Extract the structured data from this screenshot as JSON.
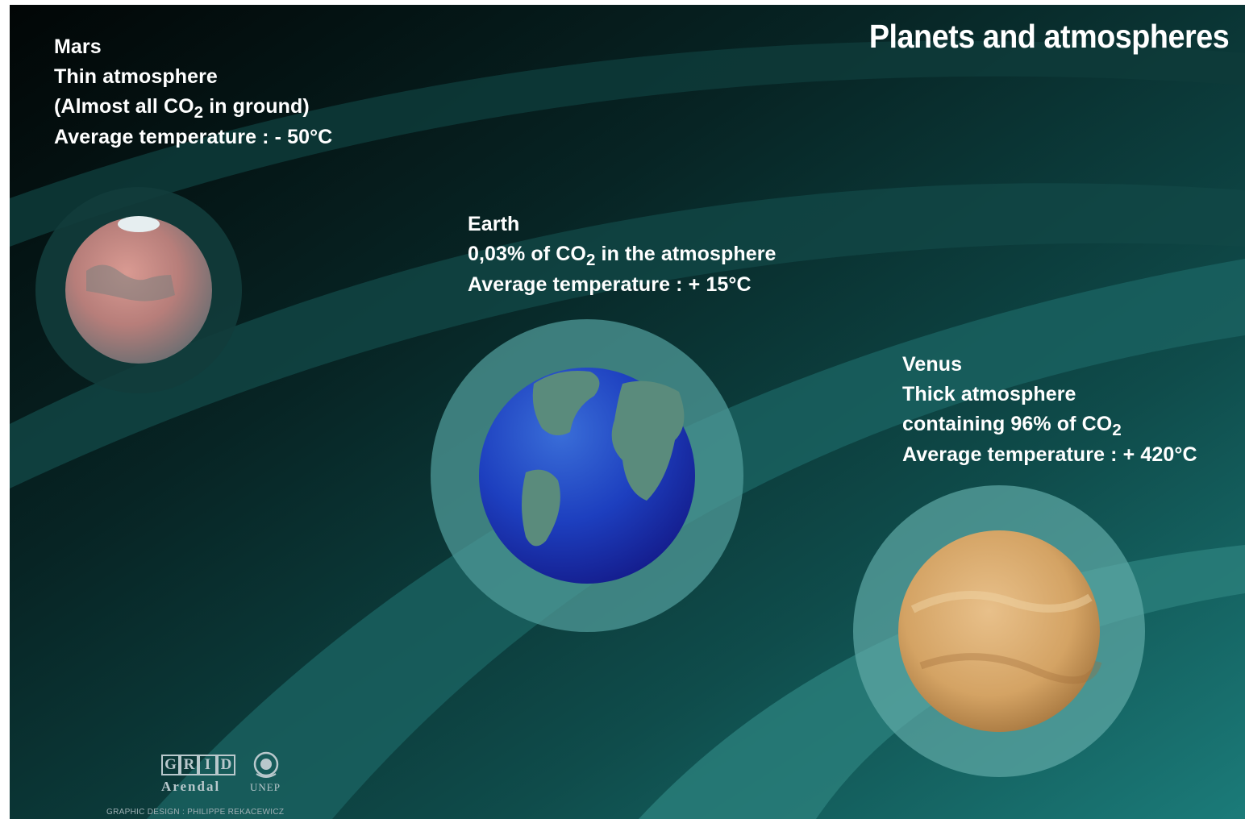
{
  "title": "Planets and atmospheres",
  "planets": {
    "mars": {
      "name": "Mars",
      "line2": "Thin atmosphere",
      "line3_pre": "(Almost all CO",
      "line3_sub": "2",
      "line3_post": " in ground)",
      "temperature": "Average temperature : - 50°C"
    },
    "earth": {
      "name": "Earth",
      "line2_pre": "0,03% of CO",
      "line2_sub": "2",
      "line2_post": " in the atmosphere",
      "temperature": "Average temperature : + 15°C"
    },
    "venus": {
      "name": "Venus",
      "line2": "Thick atmosphere",
      "line3_pre": "containing 96% of CO",
      "line3_sub": "2",
      "line3_post": "",
      "temperature": "Average temperature : + 420°C"
    }
  },
  "logo": {
    "grid_letters": [
      "G",
      "R",
      "I",
      "D"
    ],
    "arendal": "Arendal",
    "unep": "UNEP"
  },
  "credit": "GRAPHIC DESIGN : PHILIPPE REKACEWICZ",
  "colors": {
    "background_dark": "#061515",
    "background_teal": "#1a7a78",
    "halo": "#5fa6a4",
    "text": "#ffffff",
    "mars": "#c98a82",
    "earth_ocean": "#1c3ec0",
    "earth_land": "#5d8a7a",
    "venus": "#d7a96a"
  }
}
